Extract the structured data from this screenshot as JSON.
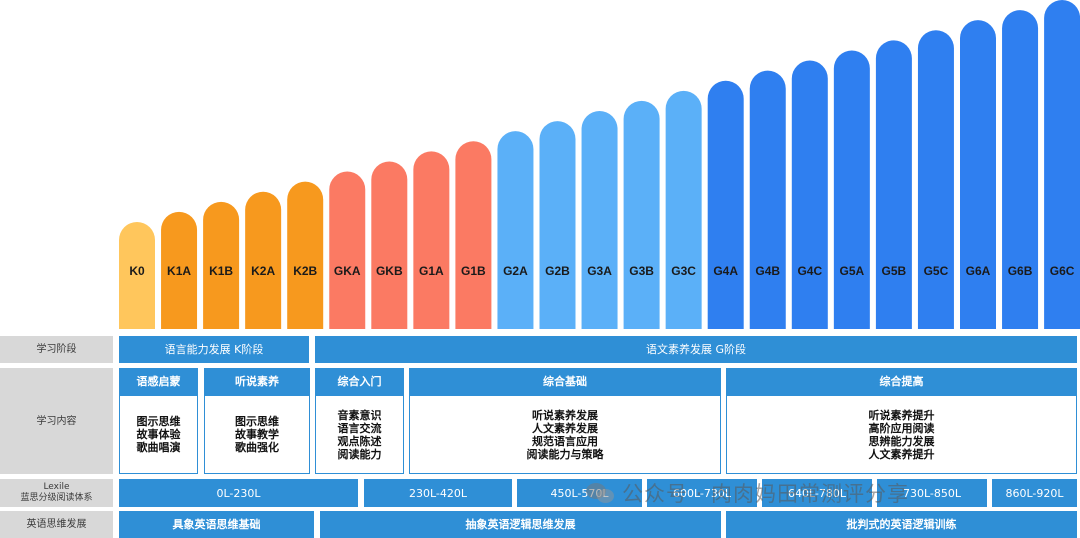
{
  "chart_data": {
    "type": "bar",
    "categories": [
      "K0",
      "K1A",
      "K1B",
      "K2A",
      "K2B",
      "GKA",
      "GKB",
      "G1A",
      "G1B",
      "G2A",
      "G2B",
      "G3A",
      "G3B",
      "G3C",
      "G4A",
      "G4B",
      "G4C",
      "G5A",
      "G5B",
      "G5C",
      "G6A",
      "G6B",
      "G6C"
    ],
    "values": [
      1,
      2,
      3,
      4,
      5,
      6,
      7,
      8,
      9,
      10,
      11,
      12,
      13,
      14,
      15,
      16,
      17,
      18,
      19,
      20,
      21,
      22,
      23
    ],
    "colors": [
      "#ffc65c",
      "#f7991e",
      "#f7991e",
      "#f7991e",
      "#f7991e",
      "#fb7a63",
      "#fb7a63",
      "#fb7a63",
      "#fb7a63",
      "#5bb0f8",
      "#5bb0f8",
      "#5bb0f8",
      "#5bb0f8",
      "#5bb0f8",
      "#2f7ff0",
      "#2f7ff0",
      "#2f7ff0",
      "#2f7ff0",
      "#2f7ff0",
      "#2f7ff0",
      "#2f7ff0",
      "#2f7ff0",
      "#2f7ff0"
    ],
    "title": "",
    "xlabel": "",
    "ylabel": "",
    "grid": false,
    "legend": "none"
  },
  "table": {
    "row_headers": {
      "stage": "学习阶段",
      "content": "学习内容",
      "lexile_line1": "Lexile",
      "lexile_line2": "蓝思分级阅读体系",
      "thinking": "英语思维发展"
    },
    "stage": {
      "k": "语言能力发展  K阶段",
      "g": "语文素养发展 G阶段"
    },
    "content": {
      "col1": {
        "title": "语感启蒙",
        "items": [
          "图示思维",
          "故事体验",
          "歌曲唱演"
        ]
      },
      "col2": {
        "title": "听说素养",
        "items": [
          "图示思维",
          "故事教学",
          "歌曲强化"
        ]
      },
      "col3": {
        "title": "综合入门",
        "items": [
          "音素意识",
          "语言交流",
          "观点陈述",
          "阅读能力"
        ]
      },
      "col4": {
        "title": "综合基础",
        "items": [
          "听说素养发展",
          "人文素养发展",
          "规范语言应用",
          "阅读能力与策略"
        ]
      },
      "col5": {
        "title": "综合提高",
        "items": [
          "听说素养提升",
          "高阶应用阅读",
          "思辨能力发展",
          "人文素养提升"
        ]
      }
    },
    "lexile": [
      "0L-230L",
      "230L-420L",
      "450L-570L",
      "600L-730L",
      "640L-780L",
      "730L-850L",
      "860L-920L"
    ],
    "thinking": [
      "具象英语思维基础",
      "抽象英语逻辑思维发展",
      "批判式的英语逻辑训练"
    ]
  },
  "watermark": {
    "text": "公众号 · 肉肉妈田常测评分享",
    "icon": "wechat-icon"
  }
}
